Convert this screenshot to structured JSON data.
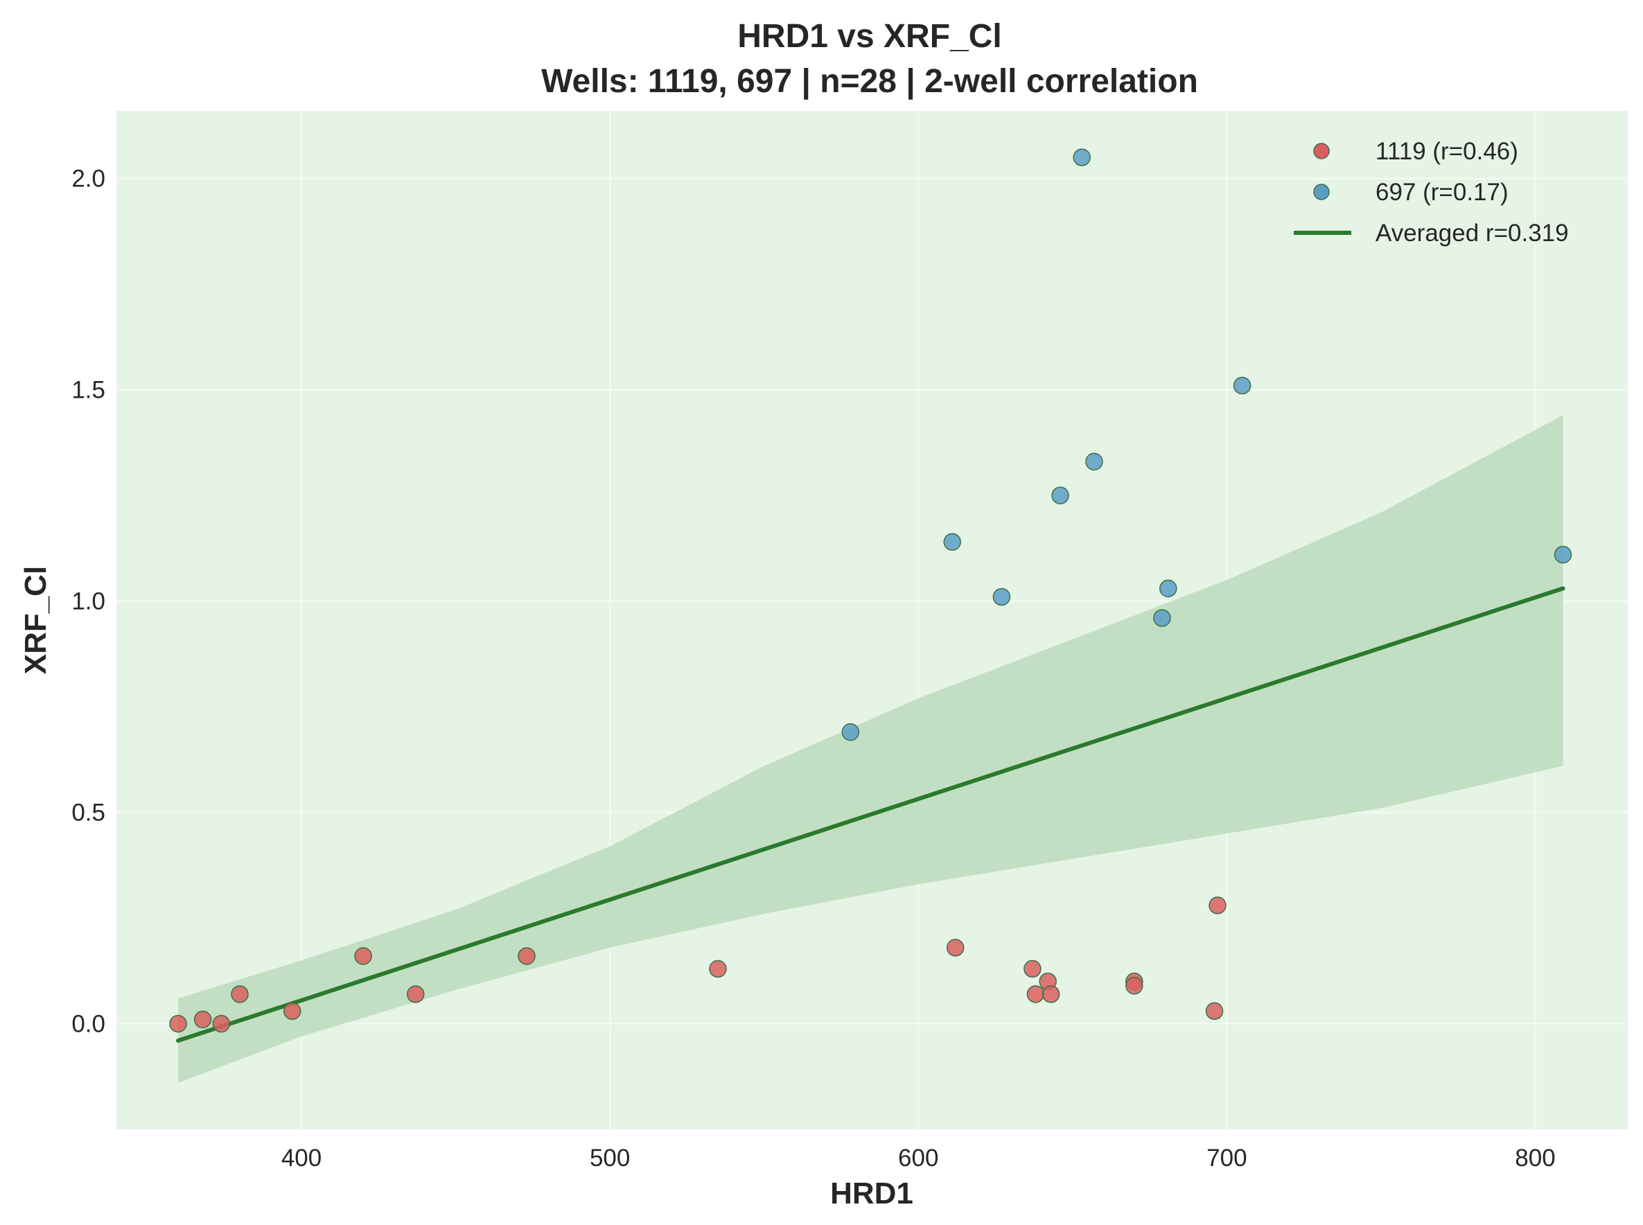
{
  "chart_data": {
    "type": "scatter",
    "title": "HRD1 vs XRF_Cl",
    "subtitle": "Wells: 1119, 697 | n=28 | 2-well correlation",
    "xlabel": "HRD1",
    "ylabel": "XRF_Cl",
    "xlim": [
      340,
      830
    ],
    "ylim": [
      -0.25,
      2.16
    ],
    "xticks": [
      400,
      500,
      600,
      700,
      800
    ],
    "yticks": [
      0.0,
      0.5,
      1.0,
      1.5,
      2.0
    ],
    "xtick_labels": [
      "400",
      "500",
      "600",
      "700",
      "800"
    ],
    "ytick_labels": [
      "0.0",
      "0.5",
      "1.0",
      "1.5",
      "2.0"
    ],
    "grid": true,
    "legend_position": "top-right",
    "colors": {
      "plot_background": "#e6f4e6",
      "series_1119": "#d9605e",
      "series_697": "#5a9ec4",
      "marker_edge": "#3c6e47",
      "fit_line": "#2a7a2e",
      "confidence_band": "#c3dfc3"
    },
    "series": [
      {
        "name": "1119 (r=0.46)",
        "x": [
          360,
          368,
          374,
          380,
          397,
          420,
          437,
          473,
          535,
          612,
          637,
          638,
          642,
          643,
          670,
          670,
          696,
          697
        ],
        "y": [
          0.0,
          0.01,
          0.0,
          0.07,
          0.03,
          0.16,
          0.07,
          0.16,
          0.13,
          0.18,
          0.13,
          0.07,
          0.1,
          0.07,
          0.1,
          0.09,
          0.03,
          0.28
        ]
      },
      {
        "name": "697 (r=0.17)",
        "x": [
          578,
          611,
          627,
          646,
          653,
          657,
          679,
          681,
          705,
          809
        ],
        "y": [
          0.69,
          1.14,
          1.01,
          1.25,
          2.05,
          1.33,
          0.96,
          1.03,
          1.51,
          1.11
        ]
      }
    ],
    "fit_line": {
      "name": "Averaged r=0.319",
      "x": [
        360,
        809
      ],
      "y": [
        -0.04,
        1.03
      ]
    },
    "confidence_band": {
      "x": [
        360,
        400,
        450,
        500,
        550,
        600,
        650,
        700,
        750,
        809
      ],
      "lower": [
        -0.14,
        -0.03,
        0.08,
        0.18,
        0.26,
        0.33,
        0.39,
        0.45,
        0.51,
        0.61
      ],
      "upper": [
        0.06,
        0.15,
        0.27,
        0.42,
        0.61,
        0.77,
        0.91,
        1.05,
        1.21,
        1.44
      ]
    }
  }
}
